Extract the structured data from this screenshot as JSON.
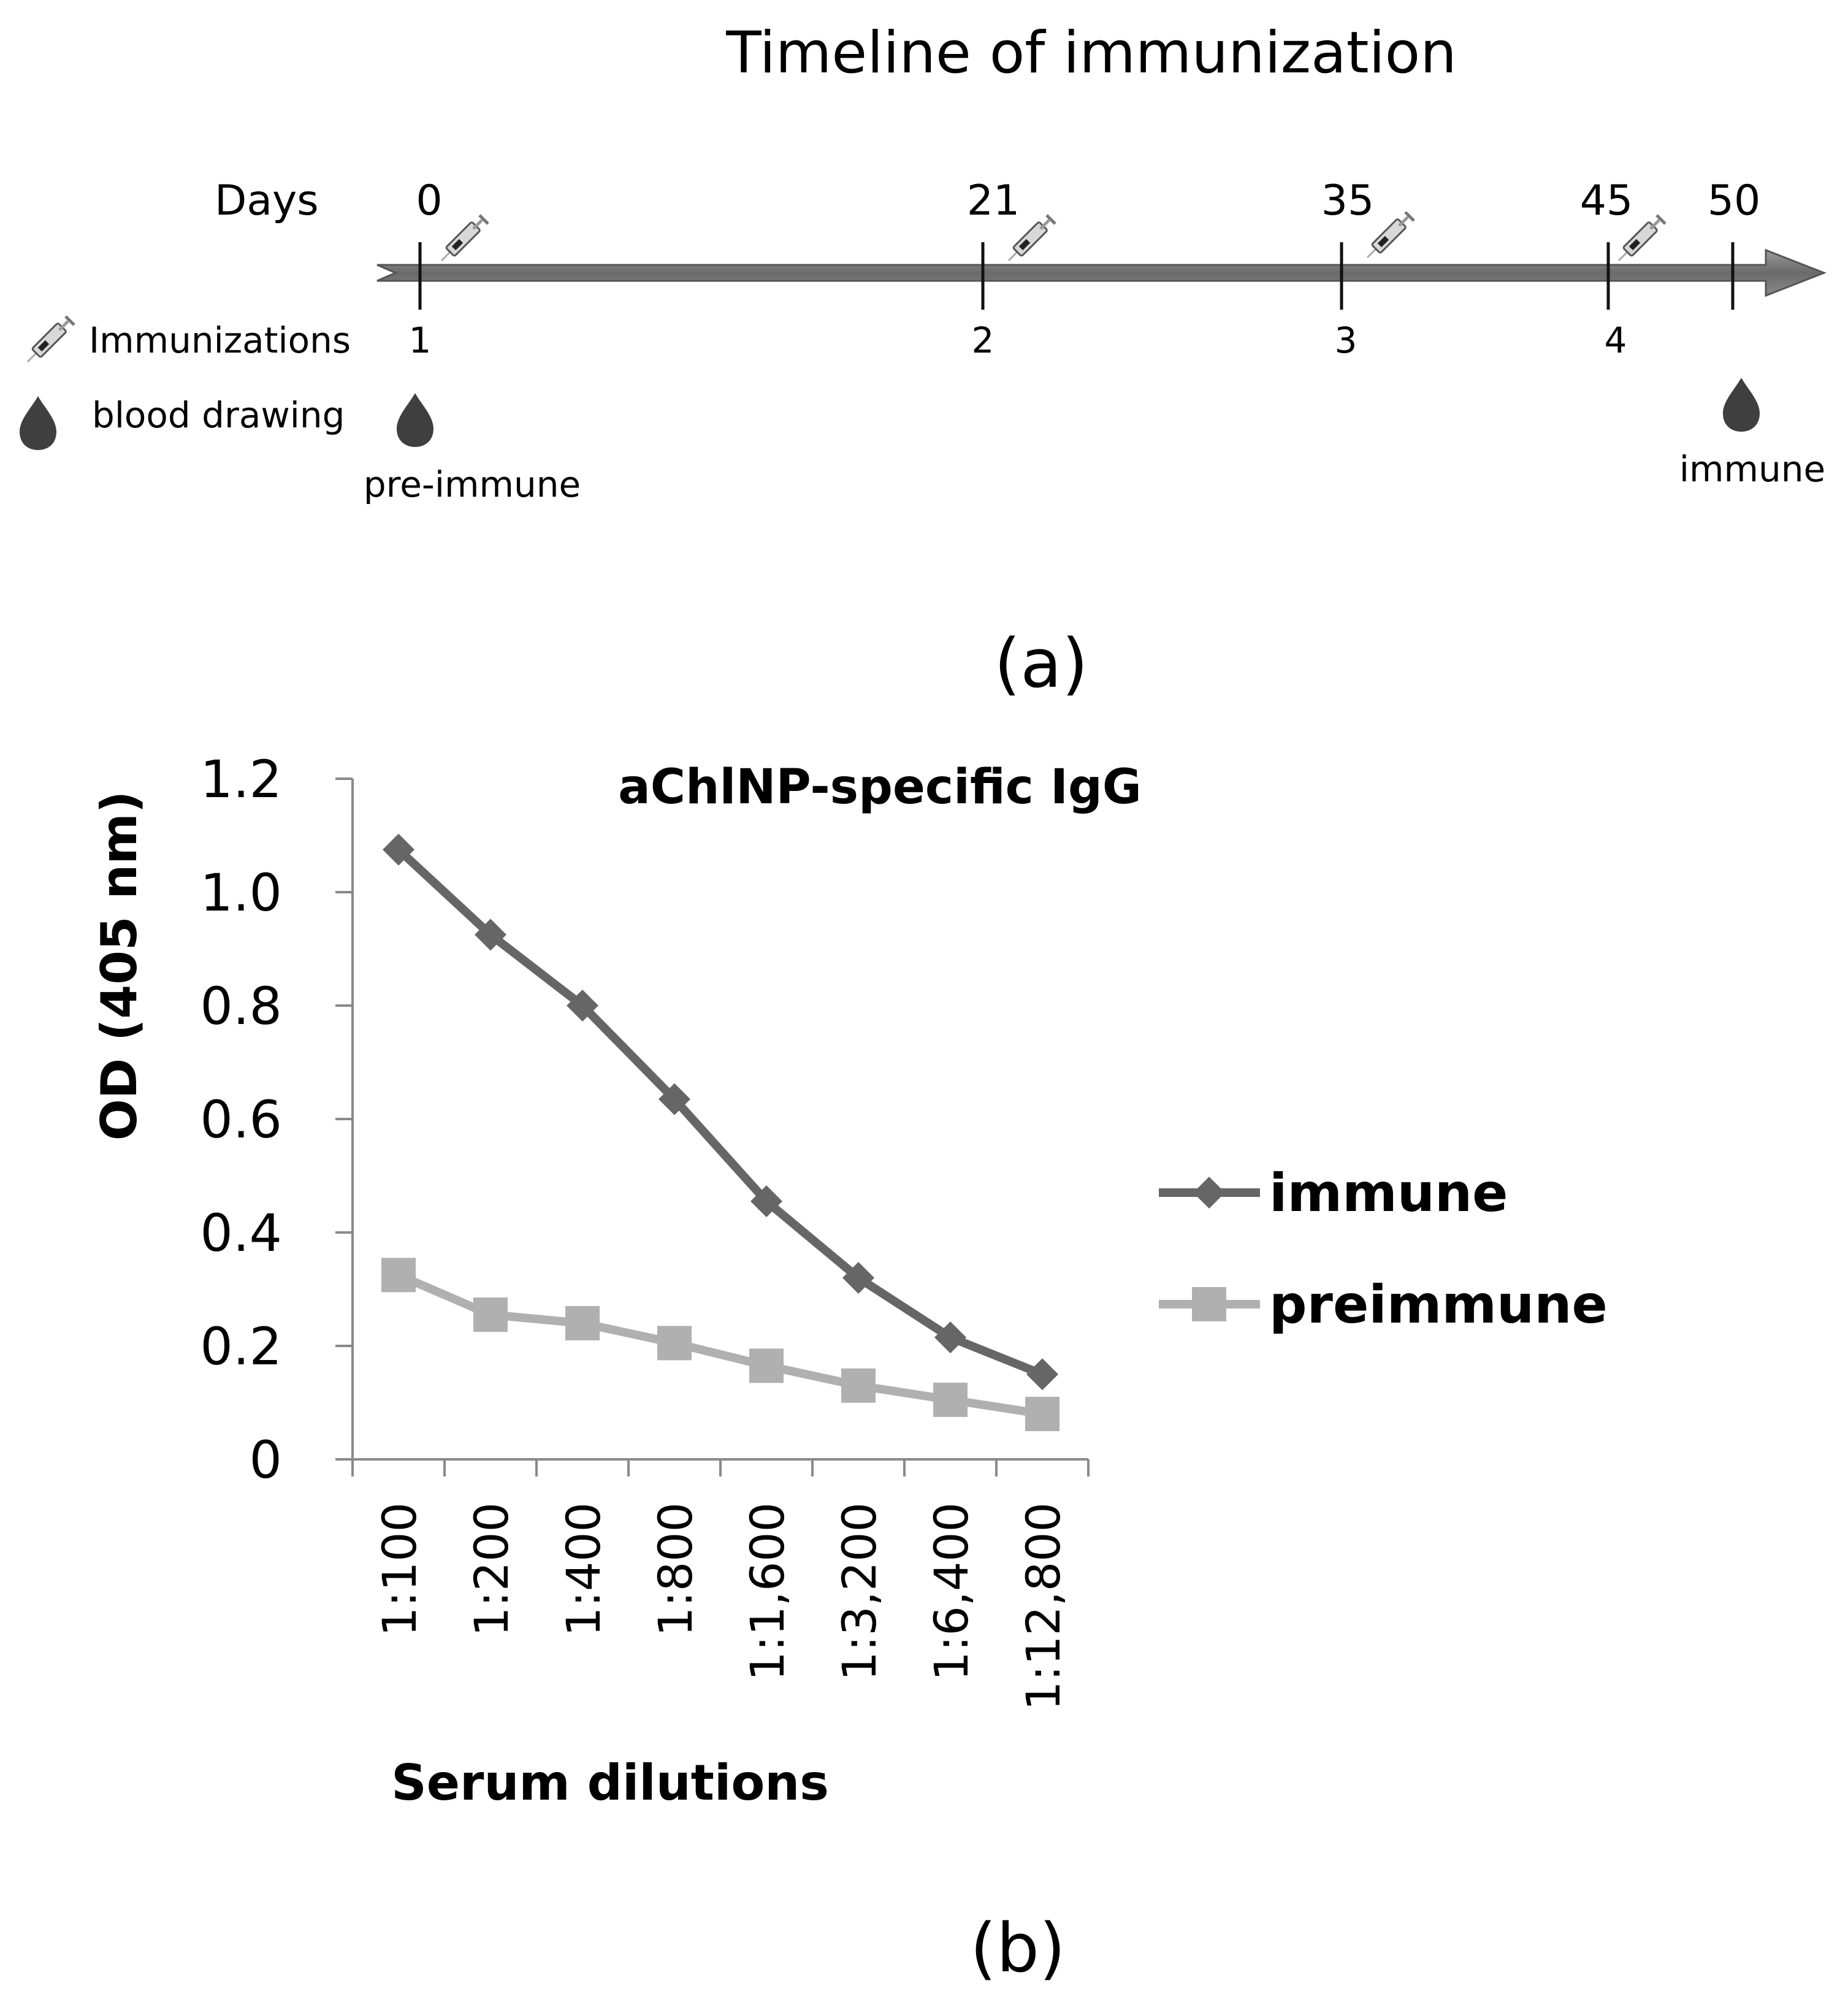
{
  "panel_a": {
    "title": "Timeline of immunization",
    "days_label": "Days",
    "legend": {
      "immunizations": "Immunizations",
      "blood_drawing": "blood drawing"
    },
    "day_ticks": [
      {
        "day": "0",
        "immunization_number": "1",
        "syringe": true
      },
      {
        "day": "21",
        "immunization_number": "2",
        "syringe": true
      },
      {
        "day": "35",
        "immunization_number": "3",
        "syringe": true
      },
      {
        "day": "45",
        "immunization_number": "4",
        "syringe": true
      },
      {
        "day": "50",
        "immunization_number": "",
        "syringe": false
      }
    ],
    "blood_draws": [
      "pre-immune",
      "immune"
    ],
    "panel_label": "(a)",
    "icons": {
      "syringe": "syringe-icon",
      "drop": "blood-drop-icon"
    }
  },
  "panel_b": {
    "panel_label": "(b)"
  },
  "chart_data": {
    "type": "line",
    "title": "aChlNP-specific IgG",
    "xlabel": "Serum dilutions",
    "ylabel": "OD (405 nm)",
    "ylim": [
      0,
      1.2
    ],
    "yticks": [
      "0",
      "0.2",
      "0.4",
      "0.6",
      "0.8",
      "1.0",
      "1.2"
    ],
    "categories": [
      "1:100",
      "1:200",
      "1:400",
      "1:800",
      "1:1,600",
      "1:3,200",
      "1:6,400",
      "1:12,800"
    ],
    "series": [
      {
        "name": "immune",
        "marker": "diamond",
        "color": "#666666",
        "values": [
          1.075,
          0.925,
          0.8,
          0.635,
          0.455,
          0.32,
          0.215,
          0.15
        ]
      },
      {
        "name": "preimmune",
        "marker": "square",
        "color": "#b0b0b0",
        "values": [
          0.325,
          0.255,
          0.24,
          0.205,
          0.165,
          0.13,
          0.105,
          0.08
        ]
      }
    ],
    "grid": false,
    "legend_position": "right"
  }
}
